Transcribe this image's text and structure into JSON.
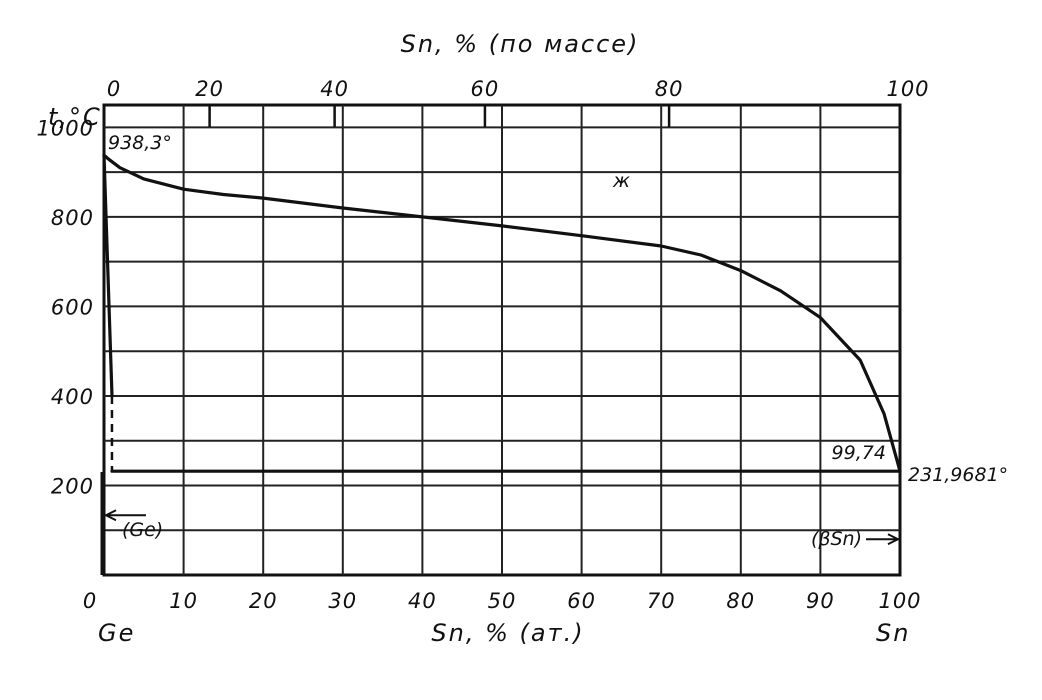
{
  "chart_data": {
    "type": "line",
    "top_axis": {
      "title": "Sn, % (по массе)",
      "ticks": [
        0,
        20,
        40,
        60,
        80,
        100
      ],
      "tick_labels": [
        "0",
        "20",
        "40",
        "60",
        "80",
        "100"
      ]
    },
    "x_axis": {
      "title": "Sn, % (ат.)",
      "range": [
        0,
        100
      ],
      "ticks": [
        0,
        10,
        20,
        30,
        40,
        50,
        60,
        70,
        80,
        90,
        100
      ],
      "tick_labels": [
        "0",
        "10",
        "20",
        "30",
        "40",
        "50",
        "60",
        "70",
        "80",
        "90",
        "100"
      ],
      "end_labels": {
        "left": "Ge",
        "right": "Sn"
      }
    },
    "y_axis": {
      "title": "t,°C",
      "range": [
        0,
        1050
      ],
      "ticks": [
        200,
        400,
        600,
        800,
        1000
      ],
      "tick_labels": [
        "200",
        "400",
        "600",
        "800",
        "1000"
      ]
    },
    "grid": true,
    "series": [
      {
        "kind": "liquidus",
        "x": [
          0,
          0.5,
          2,
          5,
          10,
          15,
          20,
          30,
          40,
          50,
          60,
          70,
          75,
          80,
          85,
          90,
          95,
          98,
          100
        ],
        "y": [
          938.3,
          930,
          910,
          885,
          862,
          850,
          842,
          820,
          800,
          780,
          758,
          735,
          715,
          680,
          635,
          575,
          480,
          360,
          231.9681
        ]
      },
      {
        "kind": "eutectic",
        "x": [
          1,
          100
        ],
        "y": [
          231.9681,
          231.9681
        ]
      },
      {
        "kind": "solidus",
        "x": [
          0,
          1
        ],
        "y": [
          938.3,
          400
        ]
      }
    ],
    "annotations": [
      {
        "text": "938,3°",
        "x": 0,
        "y": 938.3
      },
      {
        "text": "ж",
        "x": 65,
        "y": 880
      },
      {
        "text": "99,74",
        "x": 99.74,
        "y": 231.9681
      },
      {
        "text": "231,9681°",
        "x": 100,
        "y": 231.9681
      },
      {
        "text": "(Ge)",
        "x": 1,
        "y": 100
      },
      {
        "text": "(βSn)",
        "x": 100,
        "y": 80
      }
    ]
  }
}
